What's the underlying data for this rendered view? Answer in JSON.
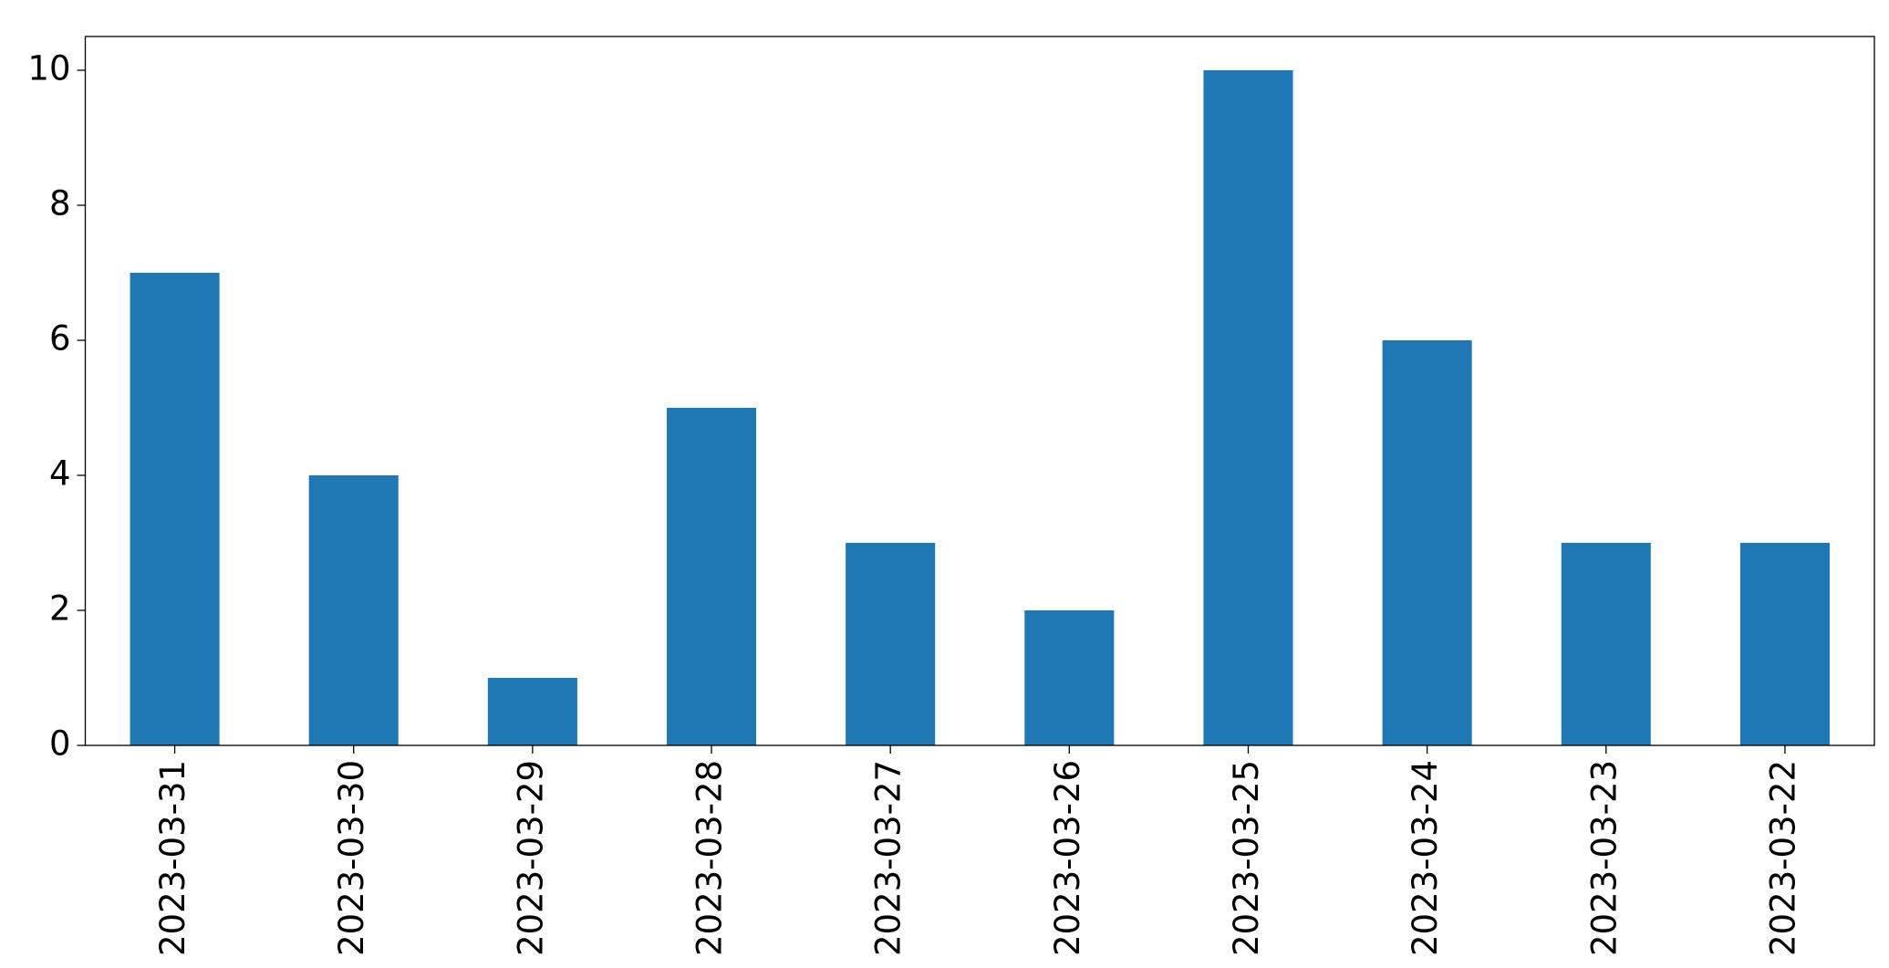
{
  "chart_data": {
    "type": "bar",
    "categories": [
      "2023-03-31",
      "2023-03-30",
      "2023-03-29",
      "2023-03-28",
      "2023-03-27",
      "2023-03-26",
      "2023-03-25",
      "2023-03-24",
      "2023-03-23",
      "2023-03-22"
    ],
    "values": [
      7,
      4,
      1,
      5,
      3,
      2,
      10,
      6,
      3,
      3
    ],
    "color": "#1f77b4",
    "ylim": [
      0,
      10.5
    ],
    "yticks": [
      0,
      2,
      4,
      6,
      8,
      10
    ],
    "grid": false
  }
}
